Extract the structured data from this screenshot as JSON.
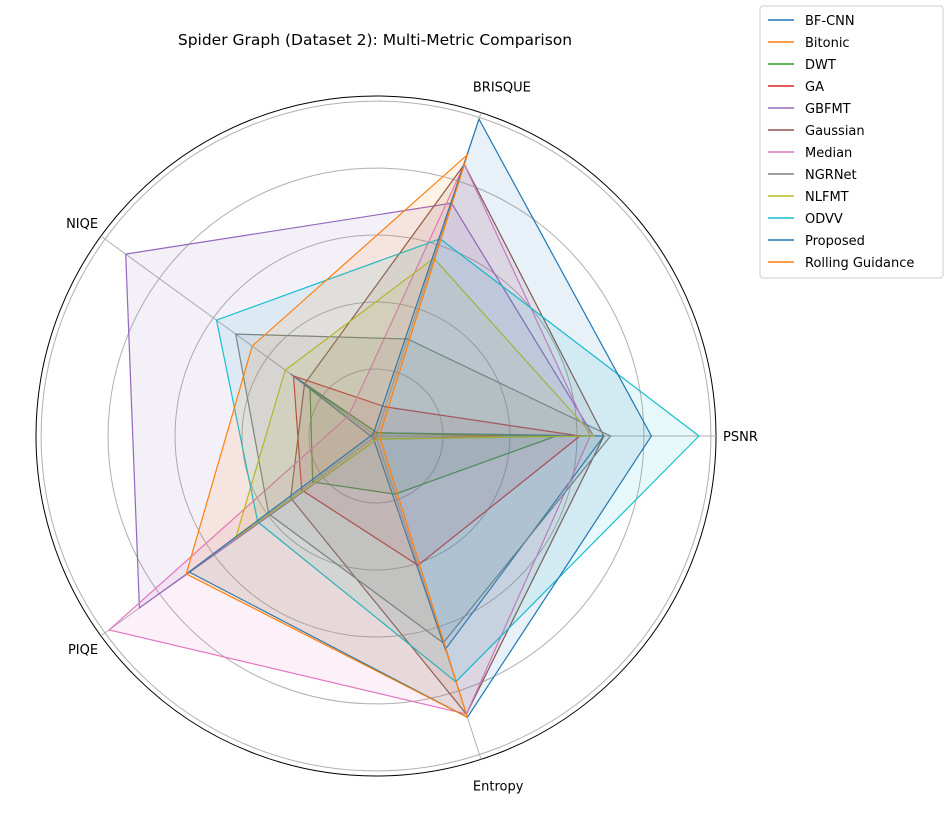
{
  "chart_data": {
    "type": "radar",
    "title": "Spider Graph (Dataset 2): Multi-Metric Comparison",
    "axes": [
      "PSNR",
      "BRISQUE",
      "NIQE",
      "PIQE",
      "Entropy"
    ],
    "rlim": [
      0,
      1
    ],
    "grid": true,
    "gridlines": [
      0.2,
      0.4,
      0.6,
      0.8,
      1.0
    ],
    "legend_position": "top-right, outside",
    "series": [
      {
        "name": "BF-CNN",
        "color": "#1f77b4",
        "values": [
          0.67,
          0.01,
          0.31,
          0.01,
          0.66
        ]
      },
      {
        "name": "Bitonic",
        "color": "#ff7f0e",
        "values": [
          0.37,
          0.01,
          0.01,
          0.01,
          0.01
        ]
      },
      {
        "name": "DWT",
        "color": "#2ca02c",
        "values": [
          0.53,
          0.01,
          0.24,
          0.23,
          0.18
        ]
      },
      {
        "name": "GA",
        "color": "#d62728",
        "values": [
          0.6,
          0.09,
          0.3,
          0.27,
          0.4
        ]
      },
      {
        "name": "GBFMT",
        "color": "#9467bd",
        "values": [
          0.64,
          0.72,
          0.91,
          0.86,
          0.01
        ]
      },
      {
        "name": "Gaussian",
        "color": "#8c564b",
        "values": [
          0.67,
          0.84,
          0.26,
          0.31,
          0.86
        ]
      },
      {
        "name": "Median",
        "color": "#e377c2",
        "values": [
          0.63,
          0.84,
          0.1,
          0.97,
          0.86
        ]
      },
      {
        "name": "NGRNet",
        "color": "#7f7f7f",
        "values": [
          0.69,
          0.3,
          0.51,
          0.39,
          0.64
        ]
      },
      {
        "name": "NLFMT",
        "color": "#bcbd22",
        "values": [
          0.64,
          0.55,
          0.33,
          0.51,
          0.01
        ]
      },
      {
        "name": "ODVV",
        "color": "#17becf",
        "values": [
          0.95,
          0.61,
          0.58,
          0.43,
          0.76
        ]
      },
      {
        "name": "Proposed",
        "color": "#1f77b4",
        "values": [
          0.81,
          0.98,
          0.01,
          0.68,
          0.87
        ]
      },
      {
        "name": "Rolling Guidance",
        "color": "#ff7f0e",
        "values": [
          0.01,
          0.87,
          0.45,
          0.69,
          0.87
        ]
      }
    ]
  }
}
